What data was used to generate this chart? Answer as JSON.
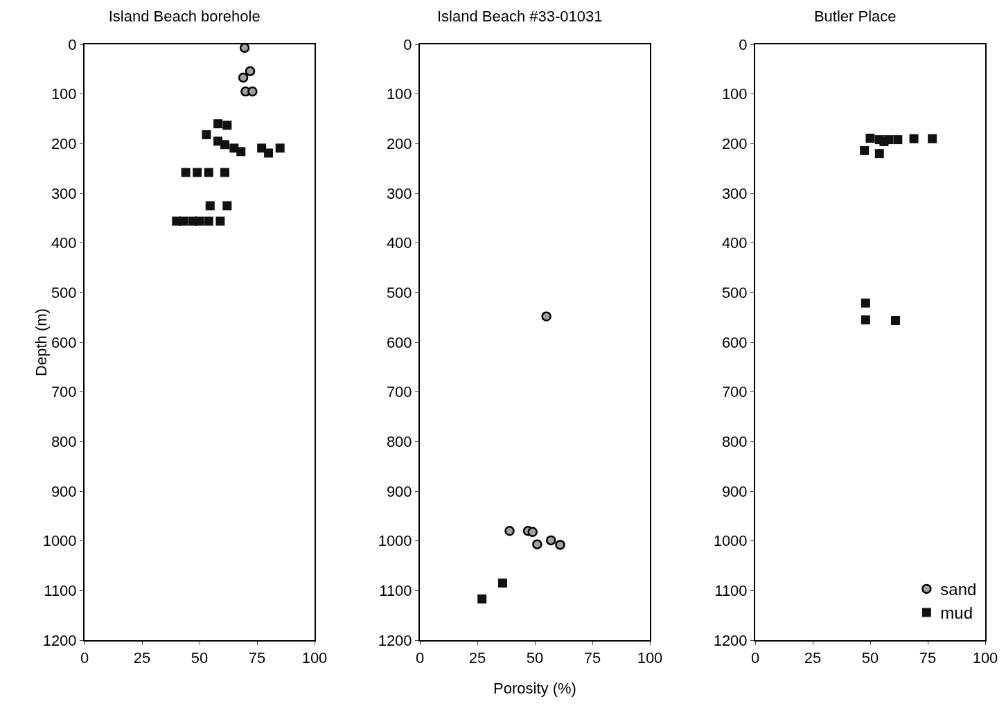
{
  "chart_data": [
    {
      "type": "scatter",
      "title": "Island Beach borehole",
      "ylabel": "Depth (m)",
      "xlim": [
        0,
        100
      ],
      "xticks": [
        0,
        25,
        50,
        75,
        100
      ],
      "ylim": [
        1200,
        0
      ],
      "yticks": [
        0,
        100,
        200,
        300,
        400,
        500,
        600,
        700,
        800,
        900,
        1000,
        1100,
        1200
      ],
      "grid": false,
      "legend": false,
      "series": [
        {
          "color": "#a0a0a0",
          "marker": "circle",
          "x": [
            69.6,
            69,
            72,
            70,
            73
          ],
          "values": [
            7,
            67,
            54,
            95,
            95
          ]
        },
        {
          "color": "#111111",
          "marker": "square",
          "x": [
            53,
            58,
            62,
            58,
            61,
            65,
            68,
            77,
            80,
            85,
            44,
            49,
            54,
            61,
            54.6,
            62,
            40,
            43,
            47,
            50,
            54,
            59
          ],
          "values": [
            182,
            160,
            163,
            195,
            202,
            209,
            216,
            209,
            219,
            209,
            258,
            258,
            258,
            258,
            325,
            325,
            356,
            356,
            356,
            356,
            356,
            356
          ]
        }
      ]
    },
    {
      "type": "scatter",
      "title": "Island Beach #33-01031",
      "xlabel": "Porosity (%)",
      "xlim": [
        0,
        100
      ],
      "xticks": [
        0,
        25,
        50,
        75,
        100
      ],
      "ylim": [
        1200,
        0
      ],
      "yticks": [
        0,
        100,
        200,
        300,
        400,
        500,
        600,
        700,
        800,
        900,
        1000,
        1100,
        1200
      ],
      "grid": false,
      "legend": false,
      "series": [
        {
          "color": "#a0a0a0",
          "marker": "circle",
          "x": [
            55,
            39,
            47,
            49,
            51,
            57,
            61
          ],
          "values": [
            548,
            980,
            980,
            982,
            1007,
            999,
            1008
          ]
        },
        {
          "color": "#111111",
          "marker": "square",
          "x": [
            36,
            27
          ],
          "values": [
            1085,
            1117
          ]
        }
      ]
    },
    {
      "type": "scatter",
      "title": "Butler Place",
      "xlim": [
        0,
        100
      ],
      "xticks": [
        0,
        25,
        50,
        75,
        100
      ],
      "ylim": [
        1200,
        0
      ],
      "yticks": [
        0,
        100,
        200,
        300,
        400,
        500,
        600,
        700,
        800,
        900,
        1000,
        1100,
        1200
      ],
      "grid": false,
      "legend": "bottom right",
      "series": [
        {
          "name": "sand",
          "color": "#a0a0a0",
          "marker": "circle"
        },
        {
          "name": "mud",
          "color": "#111111",
          "marker": "square",
          "x": [
            47.5,
            50,
            54,
            56,
            58,
            62,
            69,
            77,
            54,
            48,
            48,
            61
          ],
          "values": [
            214,
            189,
            192,
            196,
            192,
            192,
            190,
            190,
            220,
            521,
            555,
            556
          ]
        }
      ]
    }
  ]
}
